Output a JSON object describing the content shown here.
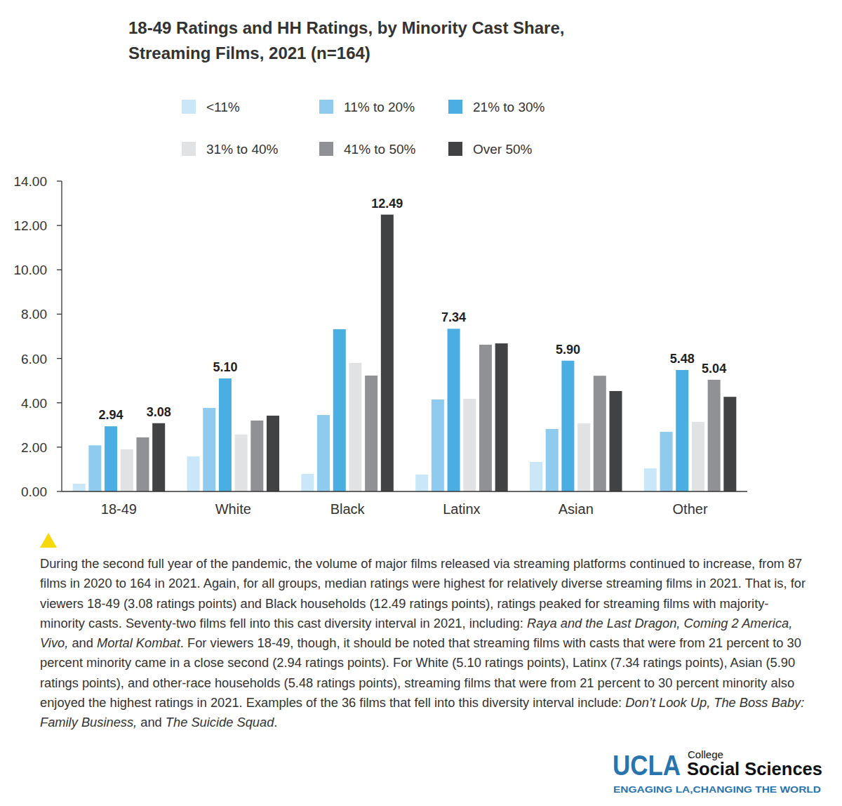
{
  "chart_data": {
    "type": "bar",
    "title": "18-49 Ratings and HH Ratings, by Minority Cast Share, Streaming Films, 2021 (n=164)",
    "categories": [
      "18-49",
      "White",
      "Black",
      "Latinx",
      "Asian",
      "Other"
    ],
    "series": [
      {
        "name": "<11%",
        "color": "#c9e7f8",
        "values": [
          0.35,
          1.58,
          0.79,
          0.76,
          1.33,
          1.04
        ],
        "value_labels": [
          null,
          null,
          null,
          null,
          null,
          null
        ]
      },
      {
        "name": "11% to 20%",
        "color": "#8ecbee",
        "values": [
          2.08,
          3.77,
          3.45,
          4.15,
          2.82,
          2.69
        ],
        "value_labels": [
          null,
          null,
          null,
          null,
          null,
          null
        ]
      },
      {
        "name": "21% to 30%",
        "color": "#4aaee3",
        "values": [
          2.94,
          5.1,
          7.32,
          7.34,
          5.9,
          5.48
        ],
        "value_labels": [
          "2.94",
          "5.10",
          null,
          "7.34",
          "5.90",
          "5.48"
        ]
      },
      {
        "name": "31% to 40%",
        "color": "#e1e2e4",
        "values": [
          1.9,
          2.57,
          5.8,
          4.18,
          3.07,
          3.14
        ],
        "value_labels": [
          null,
          null,
          null,
          null,
          null,
          null
        ]
      },
      {
        "name": "41% to 50%",
        "color": "#909194",
        "values": [
          2.44,
          3.2,
          5.23,
          6.62,
          5.22,
          5.04
        ],
        "value_labels": [
          null,
          null,
          null,
          null,
          null,
          "5.04"
        ]
      },
      {
        "name": "Over 50%",
        "color": "#414244",
        "values": [
          3.08,
          3.42,
          12.49,
          6.68,
          4.53,
          4.27
        ],
        "value_labels": [
          "3.08",
          null,
          "12.49",
          null,
          null,
          null
        ]
      }
    ],
    "ylim": [
      0,
      14
    ],
    "yticks": [
      {
        "value": 0,
        "label": "0.00"
      },
      {
        "value": 2,
        "label": "2.00"
      },
      {
        "value": 4,
        "label": "4.00"
      },
      {
        "value": 6,
        "label": "6.00"
      },
      {
        "value": 8,
        "label": "8.00"
      },
      {
        "value": 10,
        "label": "10.00"
      },
      {
        "value": 12,
        "label": "12.00"
      },
      {
        "value": 14,
        "label": "14.00"
      }
    ],
    "grid": false,
    "legend": "top",
    "data_labels": true
  },
  "caption": {
    "runs": [
      {
        "text": "During the second full year of the pandemic, the volume of major films released via streaming platforms continued to increase, from 87 films in 2020 to 164 in 2021. Again, for all groups, median ratings were highest for relatively diverse streaming films in 2021. That is, for viewers 18-49 (3.08 ratings points) and Black households (12.49 ratings points), ratings peaked for streaming films with majority-minority casts. Seventy-two films fell into this cast diversity interval in 2021, including: ",
        "italic": false
      },
      {
        "text": "Raya and the Last Dragon, Coming 2 America, Vivo,",
        "italic": true
      },
      {
        "text": " and ",
        "italic": false
      },
      {
        "text": "Mortal Kombat",
        "italic": true
      },
      {
        "text": ". For viewers 18-49, though, it should be noted that streaming films with casts that were from 21 percent to 30 percent minority came in a close second (2.94 ratings points). For White (5.10 ratings points), Latinx (7.34 ratings points), Asian (5.90 ratings points), and other-race households (5.48 ratings points), streaming films that were from 21 percent to 30 percent minority also enjoyed the highest ratings in 2021. Examples of the 36 films that fell into this diversity interval include: ",
        "italic": false
      },
      {
        "text": "Don’t Look Up, The Boss Baby: Family Business,",
        "italic": true
      },
      {
        "text": " and ",
        "italic": false
      },
      {
        "text": "The Suicide Squad",
        "italic": true
      },
      {
        "text": ".",
        "italic": false
      }
    ]
  },
  "logo": {
    "name": "UCLA",
    "unit_top": "College",
    "unit": "Social Sciences",
    "tagline": "ENGAGING LA,CHANGING THE WORLD"
  }
}
